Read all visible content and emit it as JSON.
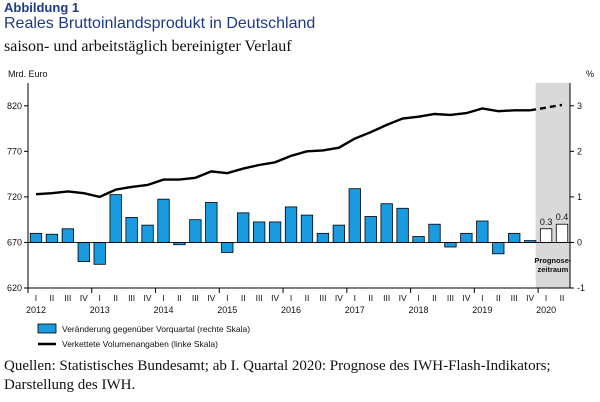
{
  "figure": {
    "label": "Abbildung 1",
    "title": "Reales Bruttoinlandsprodukt in Deutschland",
    "subtitle": "saison- und arbeitstäglich bereinigter Verlauf",
    "source": "Quellen: Statistisches Bundesamt; ab I. Quartal 2020: Prognose des IWH-Flash-Indikators; Darstellung des IWH."
  },
  "chart_data": {
    "type": "bar",
    "left_axis": {
      "label": "Mrd. Euro",
      "ticks": [
        620,
        670,
        720,
        770,
        820
      ],
      "range": [
        620,
        845
      ]
    },
    "right_axis": {
      "label": "%",
      "ticks": [
        -1,
        0,
        1,
        2,
        3
      ],
      "range": [
        -1,
        3.5
      ]
    },
    "quarter_labels": [
      "I",
      "II",
      "III",
      "IV"
    ],
    "years": [
      "2012",
      "2013",
      "2014",
      "2015",
      "2016",
      "2017",
      "2018",
      "2019",
      "2020"
    ],
    "quarters": [
      "2012 I",
      "2012 II",
      "2012 III",
      "2012 IV",
      "2013 I",
      "2013 II",
      "2013 III",
      "2013 IV",
      "2014 I",
      "2014 II",
      "2014 III",
      "2014 IV",
      "2015 I",
      "2015 II",
      "2015 III",
      "2015 IV",
      "2016 I",
      "2016 II",
      "2016 III",
      "2016 IV",
      "2017 I",
      "2017 II",
      "2017 III",
      "2017 IV",
      "2018 I",
      "2018 II",
      "2018 III",
      "2018 IV",
      "2019 I",
      "2019 II",
      "2019 III",
      "2019 IV",
      "2020 I",
      "2020 II"
    ],
    "series": [
      {
        "name": "Veränderung gegenüber Vorquartal (rechte Skala)",
        "axis": "right",
        "kind": "bar",
        "color": "#1a9be0",
        "values": [
          0.2,
          0.18,
          0.3,
          -0.42,
          -0.48,
          1.05,
          0.55,
          0.38,
          0.95,
          -0.05,
          0.5,
          0.88,
          -0.22,
          0.65,
          0.45,
          0.45,
          0.78,
          0.6,
          0.2,
          0.38,
          1.18,
          0.57,
          0.85,
          0.75,
          0.13,
          0.4,
          -0.1,
          0.2,
          0.47,
          -0.25,
          0.2,
          0.04,
          0.3,
          0.4
        ]
      },
      {
        "name": "Verkettete Volumenangaben (linke Skala)",
        "axis": "left",
        "kind": "line",
        "color": "#000000",
        "values": [
          723,
          724,
          726,
          724,
          720,
          728,
          731,
          733,
          739,
          739,
          741,
          748,
          746,
          751,
          755,
          758,
          765,
          770,
          771,
          774,
          784,
          791,
          799,
          806,
          808,
          811,
          810,
          812,
          817,
          814,
          815,
          815,
          818,
          821
        ],
        "forecast_from_index": 32
      }
    ],
    "forecast_labels": [
      "0.3",
      "0.4"
    ],
    "forecast_region": {
      "label_line1": "Prognose-",
      "label_line2": "zeitraum"
    },
    "colors": {
      "bar": "#1a9be0",
      "forecast_bar": "#ffffff",
      "forecast_shade": "#d9d9d9",
      "line": "#000000"
    },
    "legend": {
      "bar_label": "Veränderung gegenüber Vorquartal (rechte Skala)",
      "line_label": "Verkettete Volumenangaben (linke Skala)",
      "position": "bottom-left"
    },
    "grid": false
  }
}
